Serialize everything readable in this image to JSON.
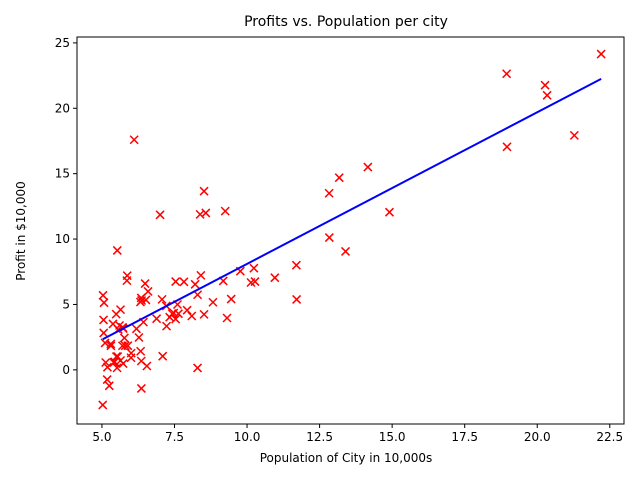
{
  "chart_data": {
    "type": "scatter",
    "title": "Profits vs. Population per city",
    "xlabel": "Population of City in 10,000s",
    "ylabel": "Profit in $10,000",
    "xlim": [
      4.14,
      22.99
    ],
    "ylim": [
      -4.14,
      25.45
    ],
    "xticks": [
      5.0,
      7.5,
      10.0,
      12.5,
      15.0,
      17.5,
      20.0,
      22.5
    ],
    "xtick_labels": [
      "5.0",
      "7.5",
      "10.0",
      "12.5",
      "15.0",
      "17.5",
      "20.0",
      "22.5"
    ],
    "yticks": [
      0,
      5,
      10,
      15,
      20,
      25
    ],
    "ytick_labels": [
      "0",
      "5",
      "10",
      "15",
      "20",
      "25"
    ],
    "grid": false,
    "colors": {
      "points": "#ff0000",
      "fit_line": "#0000ff",
      "axes": "#000000"
    },
    "series": [
      {
        "marker": "x",
        "points": [
          [
            6.1101,
            17.592
          ],
          [
            5.5277,
            9.1302
          ],
          [
            8.5186,
            13.662
          ],
          [
            7.0032,
            11.854
          ],
          [
            5.8598,
            6.8233
          ],
          [
            8.3829,
            11.886
          ],
          [
            7.4764,
            4.3483
          ],
          [
            8.5781,
            12.0
          ],
          [
            6.4862,
            6.5987
          ],
          [
            5.0546,
            3.8166
          ],
          [
            5.7107,
            3.2522
          ],
          [
            14.164,
            15.505
          ],
          [
            5.734,
            3.1551
          ],
          [
            8.4084,
            7.2258
          ],
          [
            5.6407,
            0.71618
          ],
          [
            5.3794,
            3.5129
          ],
          [
            6.3654,
            5.3048
          ],
          [
            5.1301,
            0.56077
          ],
          [
            6.4296,
            3.6518
          ],
          [
            7.0708,
            5.3893
          ],
          [
            6.1891,
            3.1386
          ],
          [
            20.27,
            21.767
          ],
          [
            5.4901,
            4.263
          ],
          [
            6.3261,
            5.1875
          ],
          [
            5.5649,
            3.0825
          ],
          [
            18.945,
            22.638
          ],
          [
            12.828,
            13.501
          ],
          [
            10.957,
            7.0467
          ],
          [
            13.176,
            14.692
          ],
          [
            22.203,
            24.147
          ],
          [
            5.2524,
            -1.22
          ],
          [
            6.5894,
            5.9966
          ],
          [
            9.2482,
            12.134
          ],
          [
            5.8918,
            1.8495
          ],
          [
            8.2111,
            6.5426
          ],
          [
            7.9334,
            4.5623
          ],
          [
            8.0959,
            4.1164
          ],
          [
            5.6063,
            3.3928
          ],
          [
            12.836,
            10.117
          ],
          [
            6.3534,
            5.4974
          ],
          [
            5.4069,
            0.55657
          ],
          [
            6.8825,
            3.9115
          ],
          [
            11.708,
            5.3854
          ],
          [
            5.7737,
            2.4406
          ],
          [
            7.8247,
            6.7318
          ],
          [
            7.0931,
            1.0463
          ],
          [
            5.0702,
            5.1337
          ],
          [
            5.8014,
            1.844
          ],
          [
            11.7,
            8.0043
          ],
          [
            5.5416,
            1.0179
          ],
          [
            7.5402,
            6.7504
          ],
          [
            5.3077,
            1.8396
          ],
          [
            7.4239,
            4.2885
          ],
          [
            7.6031,
            4.9981
          ],
          [
            6.3328,
            1.4233
          ],
          [
            6.3589,
            -1.4211
          ],
          [
            6.2742,
            2.4756
          ],
          [
            5.6397,
            4.6042
          ],
          [
            9.3102,
            3.9624
          ],
          [
            9.4536,
            5.4141
          ],
          [
            8.8254,
            5.1694
          ],
          [
            5.1793,
            -0.74279
          ],
          [
            21.279,
            17.929
          ],
          [
            14.908,
            12.054
          ],
          [
            18.959,
            17.054
          ],
          [
            7.2182,
            4.8852
          ],
          [
            8.2951,
            5.7442
          ],
          [
            10.236,
            7.7754
          ],
          [
            5.4994,
            1.0173
          ],
          [
            20.341,
            20.992
          ],
          [
            10.136,
            6.6799
          ],
          [
            7.3345,
            4.0259
          ],
          [
            6.0062,
            1.2784
          ],
          [
            7.2259,
            3.3411
          ],
          [
            5.0269,
            -2.6807
          ],
          [
            6.5479,
            0.29678
          ],
          [
            7.5386,
            3.8845
          ],
          [
            5.0365,
            5.7014
          ],
          [
            10.274,
            6.7526
          ],
          [
            5.1077,
            2.0576
          ],
          [
            5.7292,
            0.47953
          ],
          [
            5.1884,
            0.20421
          ],
          [
            6.3557,
            0.67861
          ],
          [
            9.7687,
            7.5435
          ],
          [
            6.5159,
            5.3436
          ],
          [
            8.5172,
            4.2415
          ],
          [
            9.1802,
            6.7981
          ],
          [
            6.002,
            0.92695
          ],
          [
            5.5204,
            0.152
          ],
          [
            5.0594,
            2.8214
          ],
          [
            5.7077,
            1.8451
          ],
          [
            7.6366,
            4.2959
          ],
          [
            5.8707,
            7.2029
          ],
          [
            5.3054,
            1.9869
          ],
          [
            8.2934,
            0.14454
          ],
          [
            13.394,
            9.0551
          ],
          [
            5.4369,
            0.61705
          ]
        ]
      }
    ],
    "fit_line": {
      "x": [
        5.0269,
        22.203
      ],
      "y": [
        2.3406,
        22.248
      ]
    }
  }
}
